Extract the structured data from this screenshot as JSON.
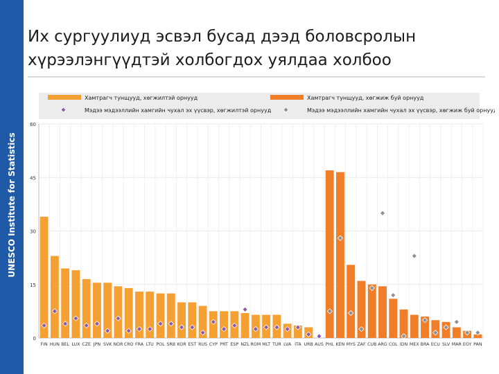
{
  "sidebar": {
    "label": "UNESCO Institute for Statistics"
  },
  "slide": {
    "title_line1": "Их сургуулиуд эсвэл бусад дээд боловсролын",
    "title_line2": "хүрээлэнгүүдтэй холбогдох уялдаа холбоо"
  },
  "colors": {
    "sidebar": "#1f5aa8",
    "bar_high_income": "#f5a033",
    "bar_low_income": "#f07d28",
    "marker_high_income": "#8e5aa8",
    "marker_low_income": "#8f8f8f",
    "legend_band": "#ececec"
  },
  "chart_data": {
    "type": "bar",
    "categories": [
      "FIN",
      "HUN",
      "BEL",
      "LUX",
      "CZE",
      "JPN",
      "SVK",
      "NOR",
      "CRO",
      "FRA",
      "LTU",
      "POL",
      "SRB",
      "KOR",
      "EST",
      "RUS",
      "CYP",
      "PRT",
      "ESP",
      "NZL",
      "ROM",
      "MLT",
      "TUR",
      "LVA",
      "ITA",
      "URB",
      "AUS",
      "PHL",
      "KEN",
      "MYS",
      "ZAF",
      "CUB",
      "ARG",
      "COL",
      "IDN",
      "MEX",
      "BRA",
      "ECU",
      "SLV",
      "MAR",
      "EGY",
      "PAN"
    ],
    "ylim": [
      0,
      60
    ],
    "yticks": [
      0,
      15,
      30,
      45,
      60
    ],
    "group_split_index": 27,
    "series": [
      {
        "name": "Хамтрагч тунщууд, хөгжилтэй орнууд",
        "kind": "bar",
        "range": [
          0,
          26
        ],
        "values": [
          34,
          23,
          19.5,
          19,
          16.5,
          15.5,
          15.5,
          14.5,
          14,
          13,
          13,
          12.5,
          12.5,
          10,
          10,
          9,
          7.5,
          7.5,
          7.5,
          7,
          6.5,
          6.5,
          6.5,
          4,
          3.5,
          3,
          null,
          null,
          null,
          null,
          null,
          null,
          null,
          null,
          null,
          null,
          null,
          null,
          null,
          null,
          null,
          null
        ]
      },
      {
        "name": "Хамтрагч тунщууд, хөгжиж буй орнууд",
        "kind": "bar",
        "range": [
          27,
          41
        ],
        "values": [
          null,
          null,
          null,
          null,
          null,
          null,
          null,
          null,
          null,
          null,
          null,
          null,
          null,
          null,
          null,
          null,
          null,
          null,
          null,
          null,
          null,
          null,
          null,
          null,
          null,
          null,
          null,
          47,
          46.5,
          20.5,
          16,
          15,
          14.5,
          11,
          8,
          6.5,
          6,
          5,
          4.5,
          3,
          2,
          1
        ]
      },
      {
        "name": "Мэдээ мэдээллийн хамгийн чухал эх үүсвэр, хөгжилтэй орнууд",
        "kind": "marker",
        "range": [
          0,
          26
        ],
        "values": [
          3.5,
          7.5,
          4,
          5.5,
          3.5,
          4,
          2,
          5.5,
          2,
          2.5,
          2.5,
          4,
          4,
          3,
          3,
          1.5,
          4.5,
          2.5,
          3.5,
          8,
          2.5,
          3,
          3,
          2.5,
          3,
          1,
          0.5,
          null,
          null,
          null,
          null,
          null,
          null,
          null,
          null,
          null,
          null,
          null,
          null,
          null,
          null,
          null
        ]
      },
      {
        "name": "Мэдээ мэдээллийн хамгийн чухал эх үүсвэр, хөгжиж буй орнууд",
        "kind": "marker",
        "range": [
          27,
          41
        ],
        "values": [
          null,
          null,
          null,
          null,
          null,
          null,
          null,
          null,
          null,
          null,
          null,
          null,
          null,
          null,
          null,
          null,
          null,
          null,
          null,
          null,
          null,
          null,
          null,
          null,
          null,
          null,
          null,
          7.5,
          28,
          7,
          2.5,
          14,
          35,
          12,
          0.5,
          23,
          5,
          1.5,
          3,
          4.5,
          1.5,
          1.5
        ]
      }
    ]
  }
}
